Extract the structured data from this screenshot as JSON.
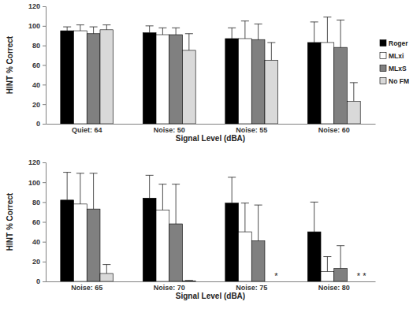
{
  "chart_data": [
    {
      "type": "bar",
      "x_label": "Signal Level (dBA)",
      "y_label": "HINT % Correct",
      "categories": [
        "Quiet: 64",
        "Noise: 50",
        "Noise: 55",
        "Noise: 60"
      ],
      "series": [
        {
          "name": "Roger",
          "color": "#000000",
          "values": [
            95,
            93,
            87,
            83
          ],
          "errors": [
            4,
            7,
            11,
            21
          ]
        },
        {
          "name": "MLxi",
          "color": "#ffffff",
          "values": [
            95,
            91,
            87,
            83
          ],
          "errors": [
            6,
            7,
            18,
            26
          ]
        },
        {
          "name": "MLxS",
          "color": "#808080",
          "values": [
            92,
            91,
            86,
            78
          ],
          "errors": [
            7,
            7,
            16,
            28
          ]
        },
        {
          "name": "No FM",
          "color": "#d9d9d9",
          "values": [
            96,
            75,
            65,
            23
          ],
          "errors": [
            5,
            17,
            18,
            19
          ]
        }
      ],
      "ylim": [
        0,
        120
      ],
      "yticks": [
        0,
        20,
        40,
        60,
        80,
        100,
        120
      ],
      "legend": "right"
    },
    {
      "type": "bar",
      "x_label": "Signal Level (dBA)",
      "y_label": "HINT % Correct",
      "categories": [
        "Noise: 65",
        "Noise: 70",
        "Noise: 75",
        "Noise: 80"
      ],
      "series": [
        {
          "name": "Roger",
          "color": "#000000",
          "values": [
            82,
            84,
            79,
            50
          ],
          "errors": [
            28,
            23,
            26,
            30
          ]
        },
        {
          "name": "MLxi",
          "color": "#ffffff",
          "values": [
            78,
            72,
            50,
            10
          ],
          "errors": [
            31,
            26,
            29,
            15
          ]
        },
        {
          "name": "MLxS",
          "color": "#808080",
          "values": [
            73,
            58,
            41,
            13
          ],
          "errors": [
            36,
            40,
            36,
            23
          ]
        },
        {
          "name": "No FM",
          "color": "#d9d9d9",
          "values": [
            8,
            0.5,
            null,
            null
          ],
          "errors": [
            9,
            0.5,
            null,
            null
          ]
        }
      ],
      "annotations": [
        {
          "text": "*",
          "category": "Noise: 75",
          "series": "No FM"
        },
        {
          "text": "* *",
          "category": "Noise: 80",
          "series": "No FM"
        }
      ],
      "ylim": [
        0,
        120
      ],
      "yticks": [
        0,
        20,
        40,
        60,
        80,
        100,
        120
      ],
      "legend": "none"
    }
  ]
}
